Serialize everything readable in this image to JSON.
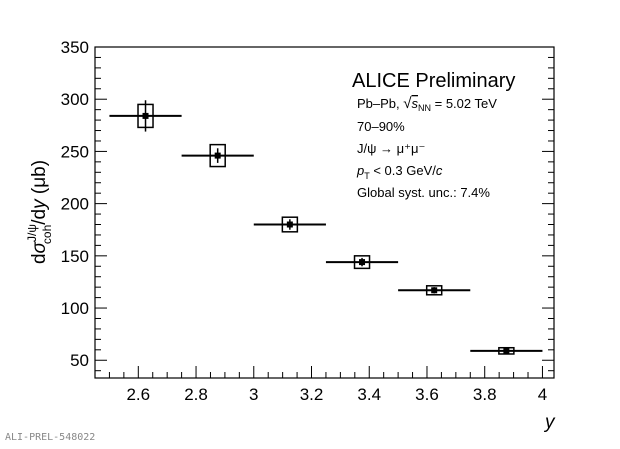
{
  "chart_data": {
    "type": "scatter",
    "xlabel": "y",
    "ylabel": "dσ^{J/ψ}_{coh}/dy (μb)",
    "xlim": [
      2.45,
      4.04
    ],
    "ylim": [
      33,
      350
    ],
    "xticks": [
      2.6,
      2.8,
      3,
      3.2,
      3.4,
      3.6,
      3.8,
      4
    ],
    "yticks": [
      50,
      100,
      150,
      200,
      250,
      300,
      350
    ],
    "grid": false,
    "x": [
      2.625,
      2.875,
      3.125,
      3.375,
      3.625,
      3.875
    ],
    "x_bin_halfwidth": [
      0.125,
      0.125,
      0.125,
      0.125,
      0.125,
      0.125
    ],
    "y": [
      284,
      246,
      180,
      144,
      117,
      59
    ],
    "stat_err": [
      15,
      7,
      5,
      4,
      3,
      2
    ],
    "syst_err": [
      11,
      10.5,
      7,
      6,
      4.3,
      3
    ],
    "color": "#000000",
    "annotations": {
      "title": "ALICE Preliminary",
      "lines": [
        "Pb–Pb, √s_NN = 5.02 TeV",
        "70–90%",
        "J/ψ → μ⁺μ⁻",
        "p_T < 0.3 GeV/c",
        "Global syst. unc.: 7.4%"
      ]
    }
  },
  "watermark": "ALI-PREL-548022"
}
